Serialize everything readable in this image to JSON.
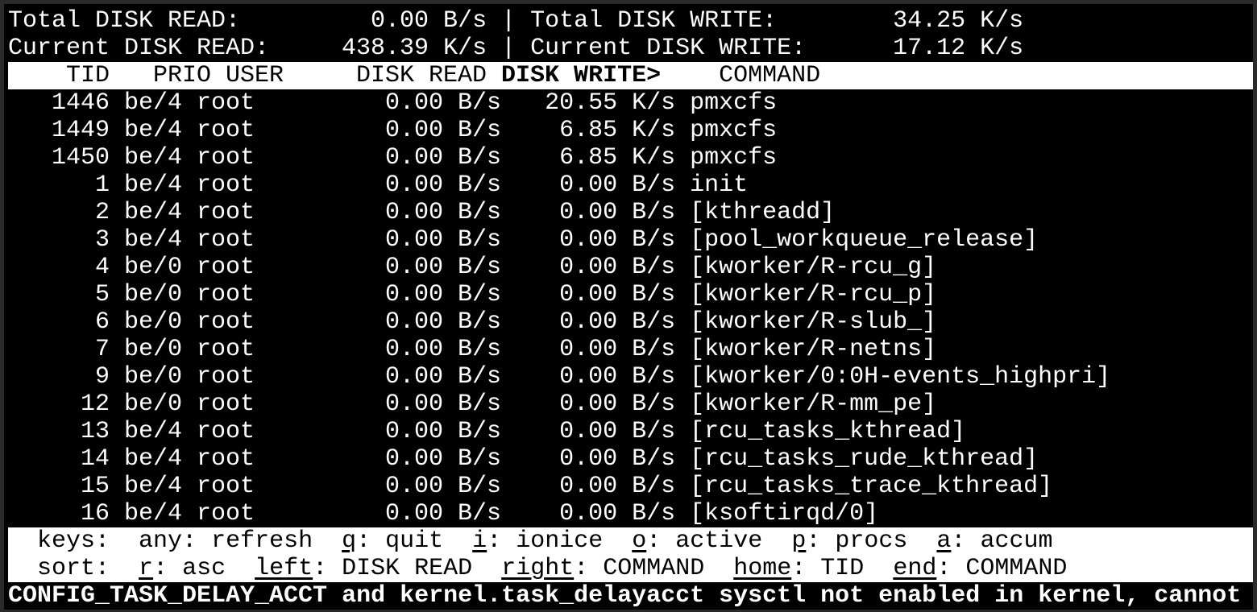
{
  "summary": {
    "total_read_label": "Total DISK READ:",
    "total_read": "0.00 B/s",
    "total_write_label": "Total DISK WRITE:",
    "total_write": "34.25 K/s",
    "current_read_label": "Current DISK READ:",
    "current_read": "438.39 K/s",
    "current_write_label": "Current DISK WRITE:",
    "current_write": "17.12 K/s",
    "separator": "|"
  },
  "header": {
    "tid": "TID",
    "prio": "PRIO",
    "user": "USER",
    "disk_read": "DISK READ",
    "disk_write": "DISK WRITE>",
    "command": "COMMAND"
  },
  "rows": [
    {
      "tid": "1446",
      "prio": "be/4",
      "user": "root",
      "read": "0.00 B/s",
      "write": "20.55 K/s",
      "command": "pmxcfs"
    },
    {
      "tid": "1449",
      "prio": "be/4",
      "user": "root",
      "read": "0.00 B/s",
      "write": "6.85 K/s",
      "command": "pmxcfs"
    },
    {
      "tid": "1450",
      "prio": "be/4",
      "user": "root",
      "read": "0.00 B/s",
      "write": "6.85 K/s",
      "command": "pmxcfs"
    },
    {
      "tid": "1",
      "prio": "be/4",
      "user": "root",
      "read": "0.00 B/s",
      "write": "0.00 B/s",
      "command": "init"
    },
    {
      "tid": "2",
      "prio": "be/4",
      "user": "root",
      "read": "0.00 B/s",
      "write": "0.00 B/s",
      "command": "[kthreadd]"
    },
    {
      "tid": "3",
      "prio": "be/4",
      "user": "root",
      "read": "0.00 B/s",
      "write": "0.00 B/s",
      "command": "[pool_workqueue_release]"
    },
    {
      "tid": "4",
      "prio": "be/0",
      "user": "root",
      "read": "0.00 B/s",
      "write": "0.00 B/s",
      "command": "[kworker/R-rcu_g]"
    },
    {
      "tid": "5",
      "prio": "be/0",
      "user": "root",
      "read": "0.00 B/s",
      "write": "0.00 B/s",
      "command": "[kworker/R-rcu_p]"
    },
    {
      "tid": "6",
      "prio": "be/0",
      "user": "root",
      "read": "0.00 B/s",
      "write": "0.00 B/s",
      "command": "[kworker/R-slub_]"
    },
    {
      "tid": "7",
      "prio": "be/0",
      "user": "root",
      "read": "0.00 B/s",
      "write": "0.00 B/s",
      "command": "[kworker/R-netns]"
    },
    {
      "tid": "9",
      "prio": "be/0",
      "user": "root",
      "read": "0.00 B/s",
      "write": "0.00 B/s",
      "command": "[kworker/0:0H-events_highpri]"
    },
    {
      "tid": "12",
      "prio": "be/0",
      "user": "root",
      "read": "0.00 B/s",
      "write": "0.00 B/s",
      "command": "[kworker/R-mm_pe]"
    },
    {
      "tid": "13",
      "prio": "be/4",
      "user": "root",
      "read": "0.00 B/s",
      "write": "0.00 B/s",
      "command": "[rcu_tasks_kthread]"
    },
    {
      "tid": "14",
      "prio": "be/4",
      "user": "root",
      "read": "0.00 B/s",
      "write": "0.00 B/s",
      "command": "[rcu_tasks_rude_kthread]"
    },
    {
      "tid": "15",
      "prio": "be/4",
      "user": "root",
      "read": "0.00 B/s",
      "write": "0.00 B/s",
      "command": "[rcu_tasks_trace_kthread]"
    },
    {
      "tid": "16",
      "prio": "be/4",
      "user": "root",
      "read": "0.00 B/s",
      "write": "0.00 B/s",
      "command": "[ksoftirqd/0]"
    }
  ],
  "keys": {
    "label": "keys:",
    "items": [
      {
        "key": "",
        "name": "any",
        "desc": "refresh"
      },
      {
        "key": "q",
        "name": "",
        "desc": "quit"
      },
      {
        "key": "i",
        "name": "",
        "desc": "ionice"
      },
      {
        "key": "o",
        "name": "",
        "desc": "active"
      },
      {
        "key": "p",
        "name": "",
        "desc": "procs"
      },
      {
        "key": "a",
        "name": "",
        "desc": "accum"
      }
    ]
  },
  "sort": {
    "label": "sort:",
    "items": [
      {
        "key": "r",
        "desc": "asc"
      },
      {
        "key": "left",
        "desc": "DISK READ"
      },
      {
        "key": "right",
        "desc": "COMMAND"
      },
      {
        "key": "home",
        "desc": "TID"
      },
      {
        "key": "end",
        "desc": "COMMAND"
      }
    ]
  },
  "status_message": "CONFIG_TASK_DELAY_ACCT and kernel.task_delayacct sysctl not enabled in kernel, cannot"
}
